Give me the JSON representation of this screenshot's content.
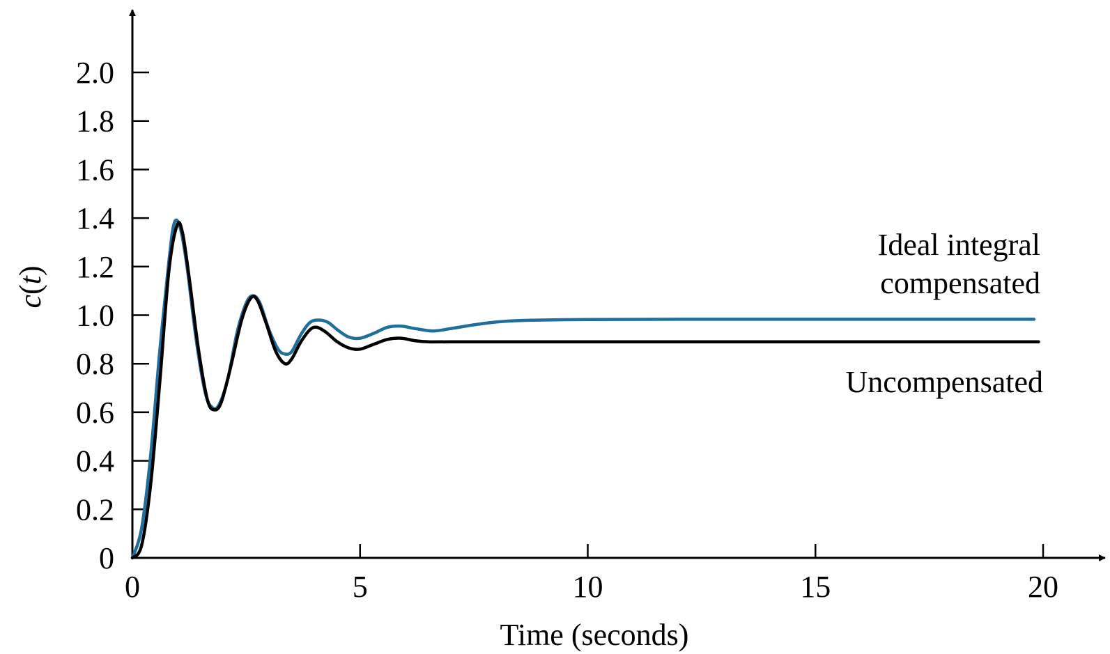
{
  "chart_data": {
    "type": "line",
    "title": "",
    "xlabel": "Time (seconds)",
    "ylabel_main": "c",
    "ylabel_var": "t",
    "xlim": [
      0,
      20
    ],
    "ylim": [
      0,
      2.0
    ],
    "x_ticks": [
      0,
      5,
      10,
      15,
      20
    ],
    "x_tick_labels": [
      "0",
      "5",
      "10",
      "15",
      "20"
    ],
    "y_ticks": [
      0,
      0.2,
      0.4,
      0.6,
      0.8,
      1.0,
      1.2,
      1.4,
      1.6,
      1.8,
      2.0
    ],
    "y_tick_labels": [
      "0",
      "0.2",
      "0.4",
      "0.6",
      "0.8",
      "1.0",
      "1.2",
      "1.4",
      "1.6",
      "1.8",
      "2.0"
    ],
    "grid": false,
    "annotations": {
      "compensated_line1": "Ideal integral",
      "compensated_line2": "compensated",
      "uncompensated": "Uncompensated"
    },
    "series": [
      {
        "color": "#1f6e9c",
        "points": [
          [
            0,
            0
          ],
          [
            0.2,
            0.12
          ],
          [
            0.4,
            0.42
          ],
          [
            0.6,
            0.85
          ],
          [
            0.8,
            1.22
          ],
          [
            0.92,
            1.38
          ],
          [
            1.05,
            1.36
          ],
          [
            1.2,
            1.2
          ],
          [
            1.4,
            0.9
          ],
          [
            1.6,
            0.68
          ],
          [
            1.75,
            0.62
          ],
          [
            1.9,
            0.63
          ],
          [
            2.1,
            0.74
          ],
          [
            2.3,
            0.93
          ],
          [
            2.5,
            1.05
          ],
          [
            2.65,
            1.08
          ],
          [
            2.8,
            1.05
          ],
          [
            3.0,
            0.94
          ],
          [
            3.2,
            0.86
          ],
          [
            3.35,
            0.84
          ],
          [
            3.5,
            0.85
          ],
          [
            3.7,
            0.92
          ],
          [
            3.9,
            0.97
          ],
          [
            4.1,
            0.98
          ],
          [
            4.3,
            0.97
          ],
          [
            4.5,
            0.94
          ],
          [
            4.75,
            0.91
          ],
          [
            5.0,
            0.905
          ],
          [
            5.3,
            0.925
          ],
          [
            5.6,
            0.95
          ],
          [
            5.9,
            0.955
          ],
          [
            6.2,
            0.945
          ],
          [
            6.6,
            0.935
          ],
          [
            7.0,
            0.945
          ],
          [
            7.5,
            0.96
          ],
          [
            8.0,
            0.972
          ],
          [
            8.5,
            0.978
          ],
          [
            9.0,
            0.98
          ],
          [
            10,
            0.982
          ],
          [
            12,
            0.983
          ],
          [
            15,
            0.983
          ],
          [
            17,
            0.983
          ],
          [
            19.8,
            0.983
          ]
        ]
      },
      {
        "color": "#000000",
        "points": [
          [
            0,
            0
          ],
          [
            0.2,
            0.05
          ],
          [
            0.4,
            0.3
          ],
          [
            0.6,
            0.72
          ],
          [
            0.8,
            1.18
          ],
          [
            0.98,
            1.37
          ],
          [
            1.1,
            1.34
          ],
          [
            1.25,
            1.15
          ],
          [
            1.45,
            0.86
          ],
          [
            1.65,
            0.65
          ],
          [
            1.8,
            0.61
          ],
          [
            1.95,
            0.64
          ],
          [
            2.15,
            0.78
          ],
          [
            2.4,
            0.98
          ],
          [
            2.6,
            1.07
          ],
          [
            2.75,
            1.06
          ],
          [
            2.95,
            0.96
          ],
          [
            3.15,
            0.85
          ],
          [
            3.35,
            0.8
          ],
          [
            3.5,
            0.82
          ],
          [
            3.7,
            0.89
          ],
          [
            3.9,
            0.94
          ],
          [
            4.05,
            0.95
          ],
          [
            4.25,
            0.93
          ],
          [
            4.5,
            0.89
          ],
          [
            4.75,
            0.865
          ],
          [
            5.0,
            0.86
          ],
          [
            5.3,
            0.88
          ],
          [
            5.6,
            0.9
          ],
          [
            5.9,
            0.905
          ],
          [
            6.2,
            0.895
          ],
          [
            6.5,
            0.89
          ],
          [
            7.0,
            0.89
          ],
          [
            10,
            0.89
          ],
          [
            15,
            0.89
          ],
          [
            19.9,
            0.89
          ]
        ]
      }
    ]
  }
}
